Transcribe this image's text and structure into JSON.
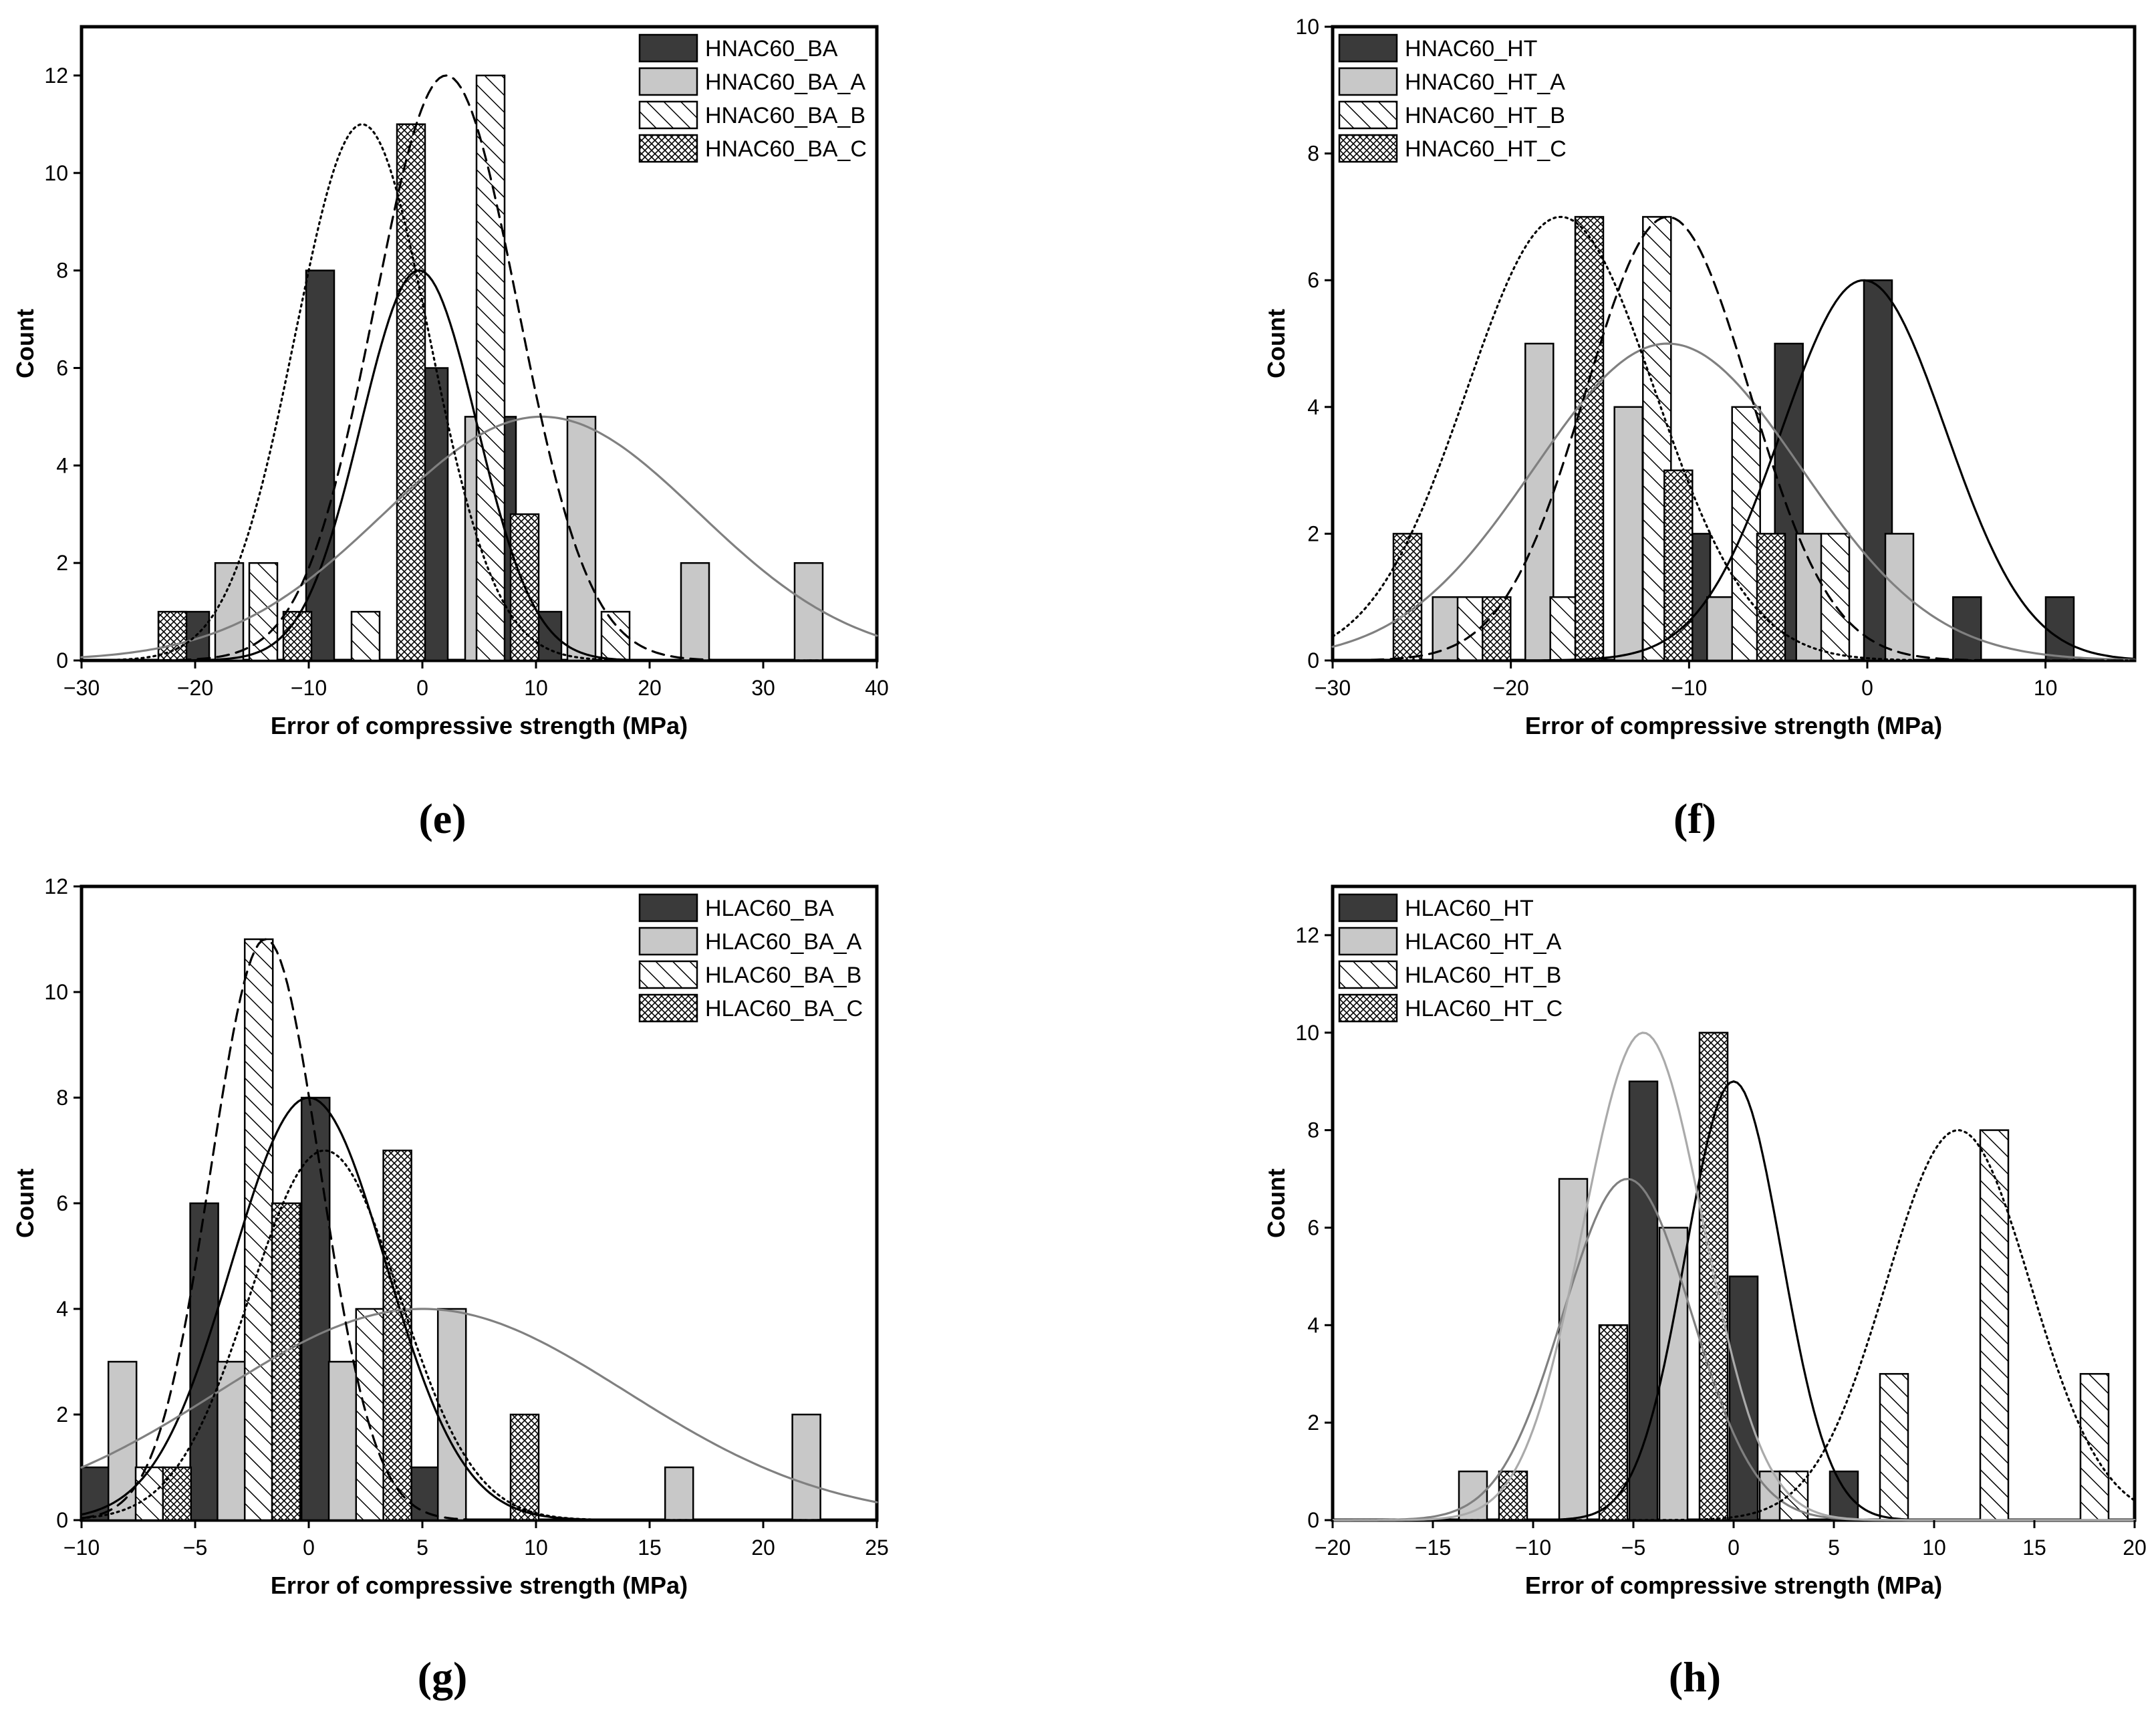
{
  "colors": {
    "ba_or_ht": "#3a3a3a",
    "variant_a": "#c8c8c8",
    "curve_ba_or_ht": "#000000",
    "curve_a": "#808080",
    "curve_a_light": "#aaaaaa"
  },
  "chart_data": [
    {
      "type": "bar",
      "panel": "(e)",
      "xlabel": "Error of compressive strength (MPa)",
      "ylabel": "Count",
      "xlim": [
        -30,
        40
      ],
      "ylim": [
        0,
        13
      ],
      "xticks": [
        -30,
        -20,
        -10,
        0,
        10,
        20,
        30,
        40
      ],
      "yticks": [
        0,
        2,
        4,
        6,
        8,
        10,
        12
      ],
      "legend_position": "top-right",
      "series": [
        {
          "name": "HNAC60_BA",
          "pattern": "dark",
          "x": [
            -20,
            -9,
            1,
            7,
            11
          ],
          "values": [
            1,
            8,
            6,
            5,
            1
          ]
        },
        {
          "name": "HNAC60_BA_A",
          "pattern": "light",
          "x": [
            -17,
            5,
            14,
            24,
            34
          ],
          "values": [
            2,
            5,
            5,
            2,
            2
          ]
        },
        {
          "name": "HNAC60_BA_B",
          "pattern": "diag",
          "x": [
            -14,
            -5,
            6,
            17
          ],
          "values": [
            2,
            1,
            12,
            1
          ]
        },
        {
          "name": "HNAC60_BA_C",
          "pattern": "cross",
          "x": [
            -22,
            -11,
            -1,
            9
          ],
          "values": [
            1,
            1,
            11,
            3
          ]
        }
      ],
      "curves": [
        {
          "series": "HNAC60_BA",
          "style": "solid",
          "color": "#000000",
          "mean": -0.3,
          "sd": 5.1,
          "peak": 8
        },
        {
          "series": "HNAC60_BA_A",
          "style": "solid",
          "color": "#808080",
          "mean": 10.5,
          "sd": 13.8,
          "peak": 5
        },
        {
          "series": "HNAC60_BA_B",
          "style": "dashed",
          "color": "#000000",
          "mean": 2.1,
          "sd": 6.3,
          "peak": 12
        },
        {
          "series": "HNAC60_BA_C",
          "style": "dotted",
          "color": "#000000",
          "mean": -5.3,
          "sd": 5.9,
          "peak": 11
        }
      ]
    },
    {
      "type": "bar",
      "panel": "(f)",
      "xlabel": "Error of compressive strength (MPa)",
      "ylabel": "Count",
      "xlim": [
        -30,
        15
      ],
      "ylim": [
        0,
        10
      ],
      "xticks": [
        -30,
        -20,
        -10,
        0,
        10
      ],
      "yticks": [
        0,
        2,
        4,
        6,
        8,
        10
      ],
      "legend_position": "top-left",
      "series": [
        {
          "name": "HNAC60_HT",
          "pattern": "dark",
          "x": [
            -9.6,
            -4.4,
            0.6,
            5.6,
            10.8
          ],
          "values": [
            2,
            5,
            6,
            1,
            1
          ]
        },
        {
          "name": "HNAC60_HT_A",
          "pattern": "light",
          "x": [
            -23.6,
            -18.4,
            -13.4,
            -8.2,
            -3.2,
            1.8
          ],
          "values": [
            1,
            5,
            4,
            1,
            2,
            2
          ]
        },
        {
          "name": "HNAC60_HT_B",
          "pattern": "diag",
          "x": [
            -22.2,
            -17,
            -11.8,
            -6.8,
            -1.8
          ],
          "values": [
            1,
            1,
            7,
            4,
            2
          ]
        },
        {
          "name": "HNAC60_HT_C",
          "pattern": "cross",
          "x": [
            -25.8,
            -20.8,
            -15.6,
            -10.6,
            -5.4
          ],
          "values": [
            2,
            1,
            7,
            3,
            2
          ]
        }
      ],
      "curves": [
        {
          "series": "HNAC60_HT",
          "style": "solid",
          "color": "#000000",
          "mean": -0.2,
          "sd": 4.6,
          "peak": 6
        },
        {
          "series": "HNAC60_HT_A",
          "style": "solid",
          "color": "#808080",
          "mean": -11.2,
          "sd": 7.5,
          "peak": 5
        },
        {
          "series": "HNAC60_HT_B",
          "style": "dashed",
          "color": "#000000",
          "mean": -11.2,
          "sd": 4.6,
          "peak": 7
        },
        {
          "series": "HNAC60_HT_C",
          "style": "dotted",
          "color": "#000000",
          "mean": -17.2,
          "sd": 5.3,
          "peak": 7
        }
      ]
    },
    {
      "type": "bar",
      "panel": "(g)",
      "xlabel": "Error of compressive strength (MPa)",
      "ylabel": "Count",
      "xlim": [
        -10,
        25
      ],
      "ylim": [
        0,
        12
      ],
      "xticks": [
        -10,
        -5,
        0,
        5,
        10,
        15,
        20,
        25
      ],
      "yticks": [
        0,
        2,
        4,
        6,
        8,
        10,
        12
      ],
      "legend_position": "top-right",
      "series": [
        {
          "name": "HLAC60_BA",
          "pattern": "dark",
          "x": [
            -9.4,
            -4.6,
            0.3,
            5.1
          ],
          "values": [
            1,
            6,
            8,
            1
          ]
        },
        {
          "name": "HLAC60_BA_A",
          "pattern": "light",
          "x": [
            -8.2,
            -3.4,
            1.5,
            6.3,
            16.3,
            21.9
          ],
          "values": [
            3,
            3,
            3,
            4,
            1,
            2
          ]
        },
        {
          "name": "HLAC60_BA_B",
          "pattern": "diag",
          "x": [
            -7,
            -2.2,
            2.7
          ],
          "values": [
            1,
            11,
            4
          ]
        },
        {
          "name": "HLAC60_BA_C",
          "pattern": "cross",
          "x": [
            -5.8,
            -1,
            3.9,
            9.5
          ],
          "values": [
            1,
            6,
            7,
            2
          ]
        }
      ],
      "curves": [
        {
          "series": "HLAC60_BA",
          "style": "solid",
          "color": "#000000",
          "mean": 0.0,
          "sd": 3.4,
          "peak": 8
        },
        {
          "series": "HLAC60_BA_A",
          "style": "solid",
          "color": "#808080",
          "mean": 5.0,
          "sd": 9.0,
          "peak": 4
        },
        {
          "series": "HLAC60_BA_B",
          "style": "dashed",
          "color": "#000000",
          "mean": -1.9,
          "sd": 2.4,
          "peak": 11
        },
        {
          "series": "HLAC60_BA_C",
          "style": "dotted",
          "color": "#000000",
          "mean": 0.7,
          "sd": 3.3,
          "peak": 7
        }
      ]
    },
    {
      "type": "bar",
      "panel": "(h)",
      "xlabel": "Error of compressive strength (MPa)",
      "ylabel": "Count",
      "xlim": [
        -20,
        20
      ],
      "ylim": [
        0,
        13
      ],
      "xticks": [
        -20,
        -15,
        -10,
        -5,
        0,
        5,
        10,
        15,
        20
      ],
      "yticks": [
        0,
        2,
        4,
        6,
        8,
        10,
        12
      ],
      "legend_position": "top-left",
      "series": [
        {
          "name": "HLAC60_HT",
          "pattern": "dark",
          "x": [
            -4.5,
            0.5,
            5.5
          ],
          "values": [
            9,
            5,
            1
          ]
        },
        {
          "name": "HLAC60_HT_A",
          "pattern": "light",
          "x": [
            -13,
            -8,
            -3,
            2
          ],
          "values": [
            1,
            7,
            6,
            1
          ]
        },
        {
          "name": "HLAC60_HT_B",
          "pattern": "diag",
          "x": [
            3,
            8,
            13,
            18
          ],
          "values": [
            1,
            3,
            8,
            3
          ]
        },
        {
          "name": "HLAC60_HT_C",
          "pattern": "cross",
          "x": [
            -11,
            -6,
            -1
          ],
          "values": [
            1,
            4,
            10
          ]
        }
      ],
      "curves": [
        {
          "series": "HLAC60_HT",
          "style": "solid",
          "color": "#000000",
          "mean": 0.0,
          "sd": 2.4,
          "peak": 9
        },
        {
          "series": "HLAC60_HT_A",
          "style": "solid",
          "color": "#808080",
          "mean": -5.3,
          "sd": 3.2,
          "peak": 7
        },
        {
          "series": "HLAC60_HT_B",
          "style": "dotted",
          "color": "#000000",
          "mean": 11.2,
          "sd": 3.6,
          "peak": 8
        },
        {
          "series": "HLAC60_HT_C",
          "style": "solid",
          "color": "#aaaaaa",
          "mean": -4.5,
          "sd": 3.0,
          "peak": 10
        }
      ]
    }
  ]
}
